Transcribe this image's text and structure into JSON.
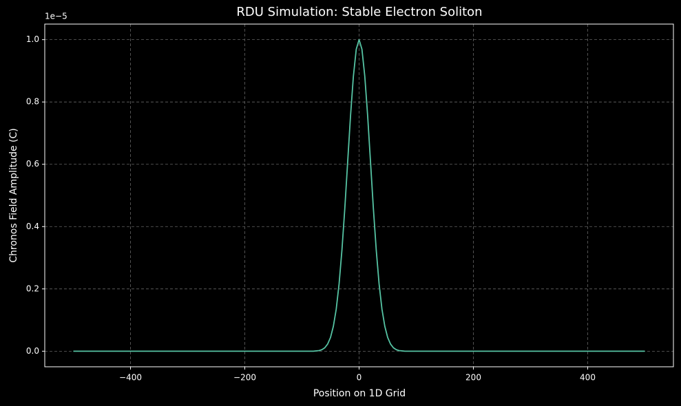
{
  "chart_data": {
    "type": "line",
    "title": "RDU Simulation: Stable Electron Soliton",
    "xlabel": "Position on 1D Grid",
    "ylabel": "Chronos Field Amplitude (C)",
    "y_offset_label": "1e−5",
    "x": [
      -500,
      -400,
      -300,
      -200,
      -100,
      -80,
      -75,
      -70,
      -65,
      -60,
      -55,
      -50,
      -45,
      -40,
      -35,
      -30,
      -25,
      -20,
      -15,
      -10,
      -5,
      0,
      5,
      10,
      15,
      20,
      25,
      30,
      35,
      40,
      45,
      50,
      55,
      60,
      65,
      70,
      75,
      80,
      100,
      200,
      300,
      400,
      500
    ],
    "values": [
      0,
      0,
      0,
      0,
      0,
      0.0,
      0.001,
      0.002,
      0.005,
      0.011,
      0.023,
      0.044,
      0.08,
      0.135,
      0.216,
      0.325,
      0.458,
      0.607,
      0.755,
      0.882,
      0.969,
      1.0,
      0.969,
      0.882,
      0.755,
      0.607,
      0.458,
      0.325,
      0.216,
      0.135,
      0.08,
      0.044,
      0.023,
      0.011,
      0.005,
      0.002,
      0.001,
      0.0,
      0,
      0,
      0,
      0,
      0
    ],
    "color": "#56c4a4",
    "xlim": [
      -550,
      550
    ],
    "ylim": [
      -0.05,
      1.05
    ],
    "xticks": [
      {
        "value": -400,
        "label": "−400"
      },
      {
        "value": -200,
        "label": "−200"
      },
      0,
      200,
      400
    ],
    "yticks": [
      {
        "value": 0,
        "label": "0.0"
      },
      0.2,
      0.4,
      0.6,
      0.8,
      {
        "value": 1,
        "label": "1.0"
      }
    ],
    "grid": true
  }
}
